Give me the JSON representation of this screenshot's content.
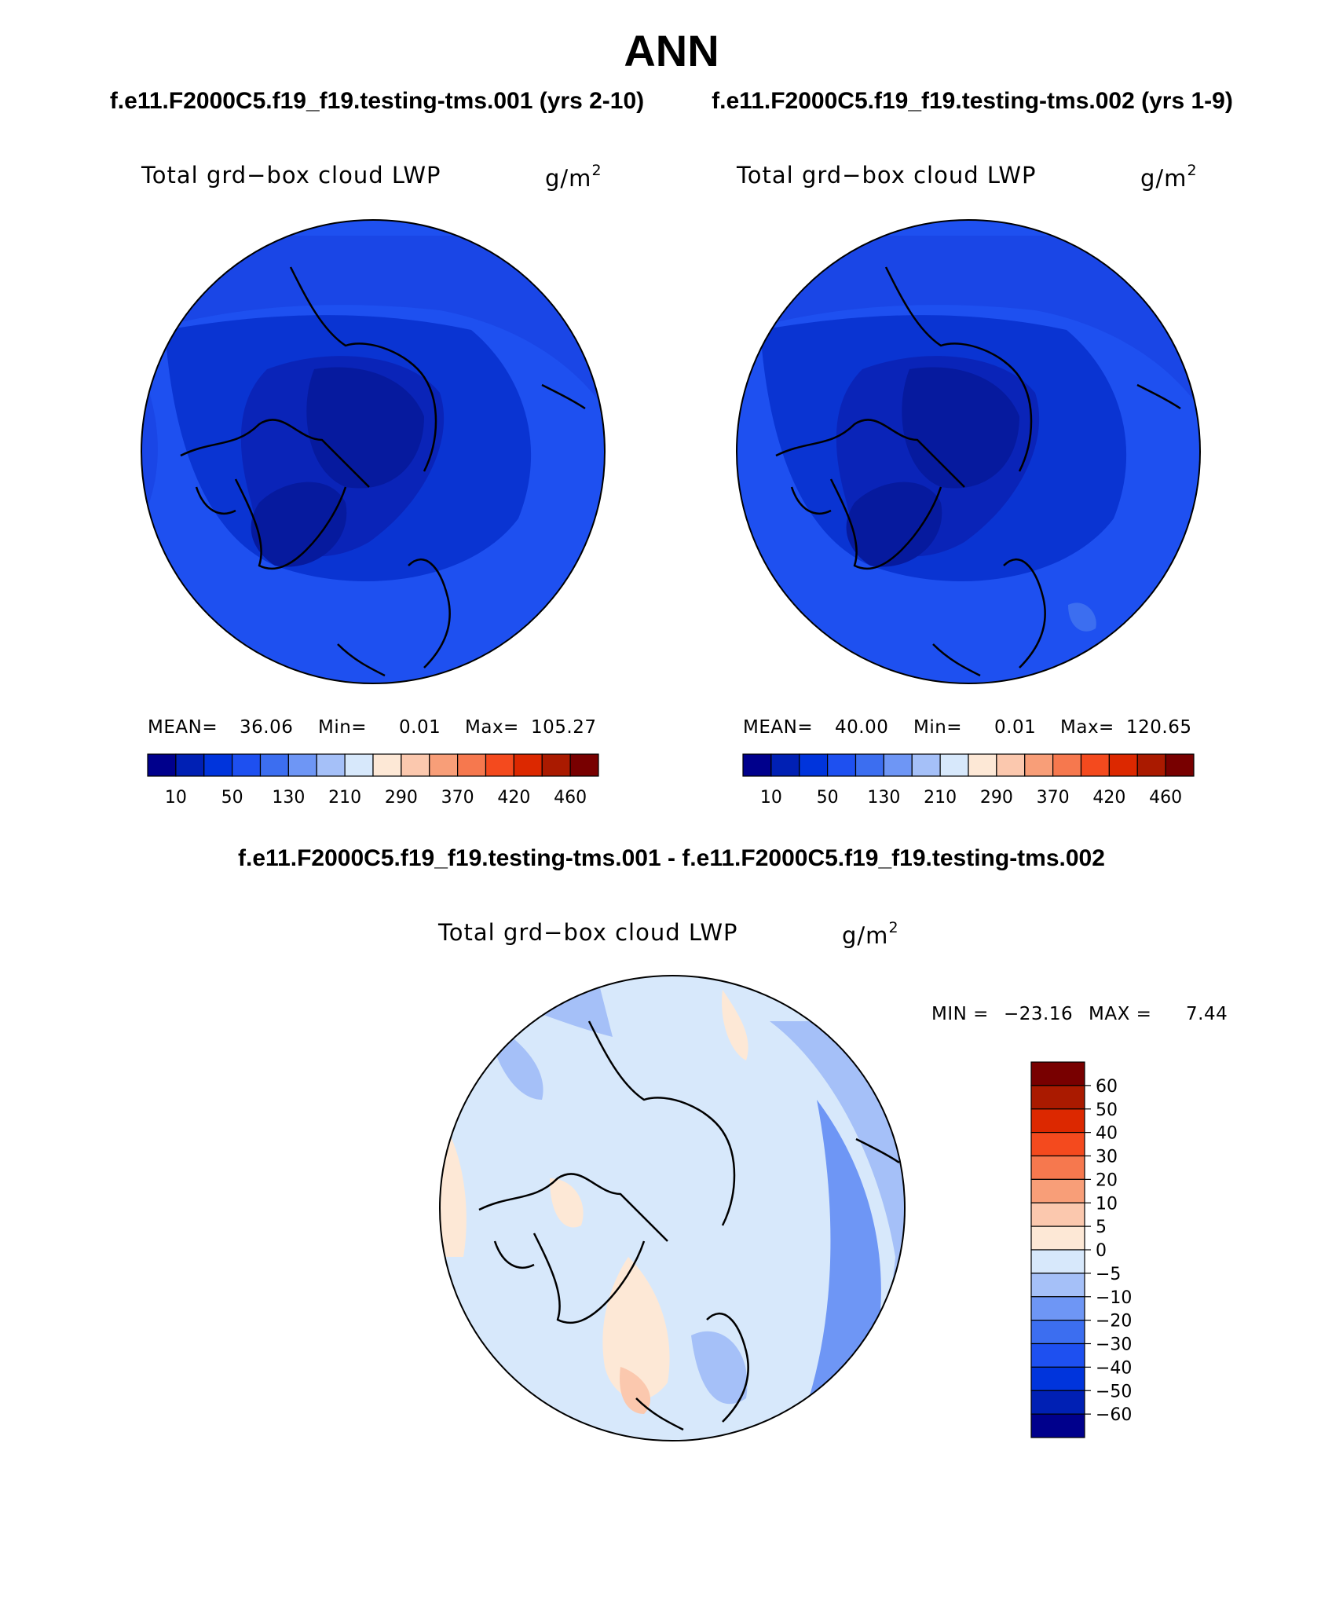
{
  "title": "ANN",
  "subtitles": {
    "left": "f.e11.F2000C5.f19_f19.testing-tms.001 (yrs 2-10)",
    "right": "f.e11.F2000C5.f19_f19.testing-tms.002 (yrs 1-9)",
    "difference": "f.e11.F2000C5.f19_f19.testing-tms.001 - f.e11.F2000C5.f19_f19.testing-tms.002"
  },
  "variable_name": "Total grd−box cloud LWP",
  "units": {
    "base": "g/m",
    "exponent": "2"
  },
  "panels": [
    {
      "id": "case1",
      "mean_label": "MEAN=",
      "mean": "36.06",
      "min_label": "Min=",
      "min": "0.01",
      "max_label": "Max=",
      "max": "105.27"
    },
    {
      "id": "case2",
      "mean_label": "MEAN=",
      "mean": "40.00",
      "min_label": "Min=",
      "min": "0.01",
      "max_label": "Max=",
      "max": "120.65"
    }
  ],
  "diff_stats": {
    "min_label": "MIN =",
    "min": "−23.16",
    "max_label": "MAX =",
    "max": "7.44"
  },
  "colorbar_main": {
    "colors": [
      "#00008c",
      "#0020b4",
      "#0034dc",
      "#1e50f0",
      "#3c6ef0",
      "#6e96f5",
      "#a5c0f8",
      "#d7e8fb",
      "#fde8d6",
      "#fbc8ae",
      "#f89e78",
      "#f6784e",
      "#f44a1e",
      "#dc2800",
      "#aa1a00",
      "#780000"
    ],
    "tick_labels": [
      "10",
      "50",
      "130",
      "210",
      "290",
      "370",
      "420",
      "460"
    ]
  },
  "colorbar_diff": {
    "colors": [
      "#780000",
      "#aa1a00",
      "#dc2800",
      "#f44a1e",
      "#f6784e",
      "#f89e78",
      "#fbc8ae",
      "#fde8d6",
      "#d7e8fb",
      "#a5c0f8",
      "#6e96f5",
      "#3c6ef0",
      "#1e50f0",
      "#0034dc",
      "#0020b4",
      "#00008c"
    ],
    "tick_labels": [
      "60",
      "50",
      "40",
      "30",
      "20",
      "10",
      "5",
      "0",
      "−5",
      "−10",
      "−20",
      "−30",
      "−40",
      "−50",
      "−60"
    ]
  }
}
